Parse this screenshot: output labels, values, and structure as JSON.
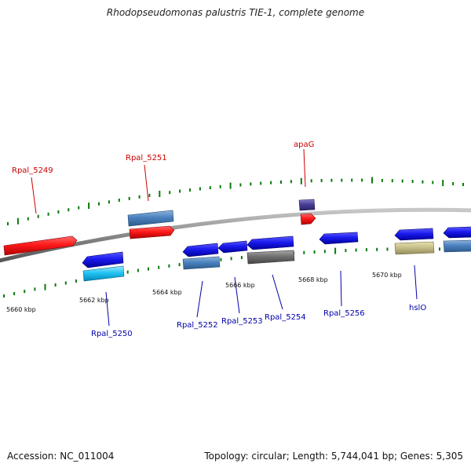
{
  "title": "Rhodopseudomonas palustris TIE-1, complete genome",
  "accession": "Accession: NC_011004",
  "summary": "Topology: circular; Length: 5,744,041 bp; Genes: 5,305",
  "colors": {
    "top_label": "#cc0000",
    "bottom_label": "#0000aa",
    "tick": "#0a7a0a",
    "backbone": "#888888"
  },
  "kbp_labels": [
    "5660 kbp",
    "5662 kbp",
    "5664 kbp",
    "5666 kbp",
    "5668 kbp",
    "5670 kbp"
  ],
  "gene_labels_top": [
    "Rpal_5249",
    "Rpal_5251",
    "apaG"
  ],
  "gene_labels_bottom": [
    "Rpal_5250",
    "Rpal_5252",
    "Rpal_5253",
    "Rpal_5254",
    "Rpal_5256",
    "hslO"
  ]
}
